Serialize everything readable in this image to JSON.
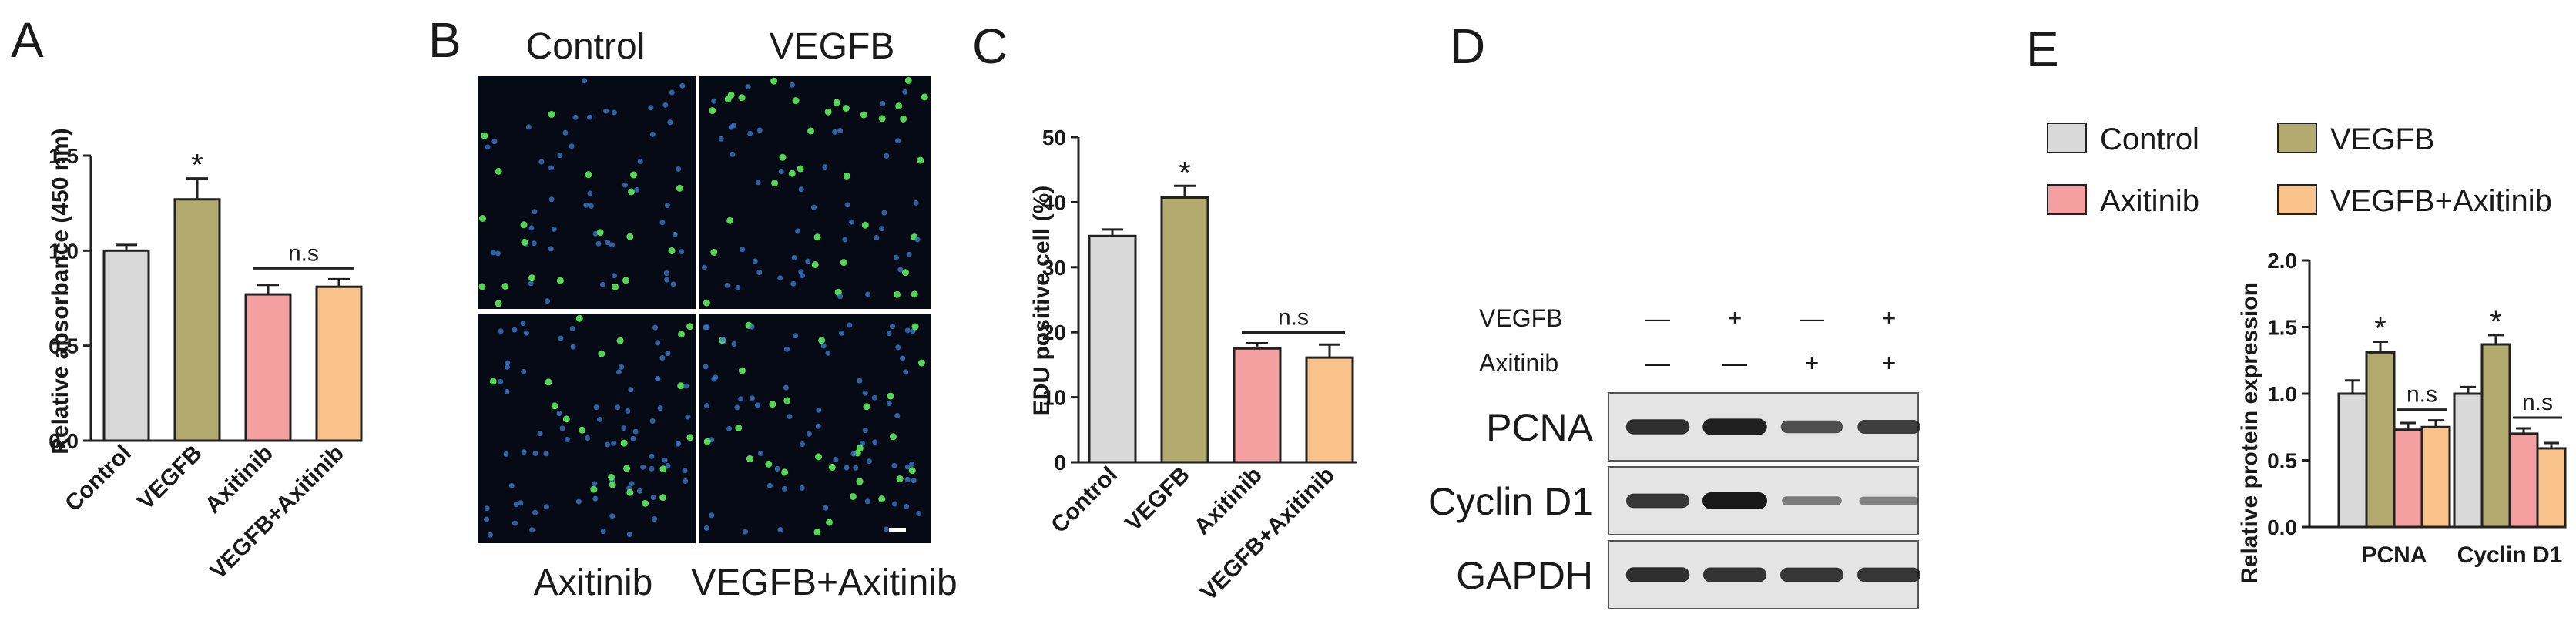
{
  "panel_labels": [
    "A",
    "B",
    "C",
    "D",
    "E"
  ],
  "colors": {
    "control": "#d9d9d9",
    "vegfb": "#b3aa70",
    "axitinib": "#f4a0a0",
    "vegfb_axitinib": "#f8c28a",
    "micro_bg": "#060a14",
    "nucleus_blue": "#3a78c8",
    "nucleus_green": "#5ae05a",
    "blot_bg": "#e4e4e4",
    "band": "#181818"
  },
  "chart_data": [
    {
      "panel": "A",
      "type": "bar",
      "ylabel": "Relative absorbance (450 nm)",
      "ylim": [
        0,
        1.5
      ],
      "yticks": [
        "0.0",
        "0.5",
        "1.0",
        "1.5"
      ],
      "categories": [
        "Control",
        "VEGFB",
        "Axitinib",
        "VEGFB+Axitinib"
      ],
      "values": [
        1.0,
        1.27,
        0.77,
        0.81
      ],
      "errors": [
        0.03,
        0.11,
        0.05,
        0.04
      ],
      "annotations": [
        {
          "text": "*",
          "bar": 1
        },
        {
          "text": "n.s",
          "from_bar": 2,
          "to_bar": 3
        }
      ]
    },
    {
      "panel": "C",
      "type": "bar",
      "ylabel": "EDU positive cell (%)",
      "ylim": [
        0,
        50
      ],
      "yticks": [
        "0",
        "10",
        "20",
        "30",
        "40",
        "50"
      ],
      "categories": [
        "Control",
        "VEGFB",
        "Axitinib",
        "VEGFB+Axitinib"
      ],
      "values": [
        34.8,
        40.7,
        17.5,
        16.1
      ],
      "errors": [
        1.0,
        1.8,
        0.8,
        2.0
      ],
      "annotations": [
        {
          "text": "*",
          "bar": 1
        },
        {
          "text": "n.s",
          "from_bar": 2,
          "to_bar": 3
        }
      ]
    },
    {
      "panel": "E",
      "type": "bar",
      "ylabel": "Relative protein expression",
      "ylim": [
        0,
        2.0
      ],
      "yticks": [
        "0.0",
        "0.5",
        "1.0",
        "1.5",
        "2.0"
      ],
      "categories": [
        "PCNA",
        "Cyclin D1"
      ],
      "series": [
        {
          "name": "Control",
          "values": [
            1.0,
            1.0
          ],
          "errors": [
            0.1,
            0.05
          ]
        },
        {
          "name": "VEGFB",
          "values": [
            1.31,
            1.37
          ],
          "errors": [
            0.08,
            0.07
          ]
        },
        {
          "name": "Axitinib",
          "values": [
            0.73,
            0.7
          ],
          "errors": [
            0.05,
            0.04
          ]
        },
        {
          "name": "VEGFB+Axitinib",
          "values": [
            0.75,
            0.59
          ],
          "errors": [
            0.05,
            0.04
          ]
        }
      ],
      "legend": "top",
      "annotations": [
        {
          "text": "*",
          "category": 0,
          "series": 1
        },
        {
          "text": "*",
          "category": 1,
          "series": 1
        },
        {
          "text": "n.s",
          "category": 0,
          "from_series": 2,
          "to_series": 3
        },
        {
          "text": "n.s",
          "category": 1,
          "from_series": 2,
          "to_series": 3
        }
      ]
    }
  ],
  "micrographs": {
    "titles": [
      "Control",
      "VEGFB",
      "Axitinib",
      "VEGFB+Axitinib"
    ]
  },
  "western_blot": {
    "treatments": [
      {
        "label": "VEGFB",
        "signs": [
          "—",
          "+",
          "—",
          "+"
        ]
      },
      {
        "label": "Axitinib",
        "signs": [
          "—",
          "—",
          "+",
          "+"
        ]
      }
    ],
    "proteins": [
      "PCNA",
      "Cyclin D1",
      "GAPDH"
    ],
    "band_intensity": [
      [
        0.85,
        0.95,
        0.65,
        0.75
      ],
      [
        0.8,
        1.0,
        0.35,
        0.3
      ],
      [
        0.85,
        0.82,
        0.8,
        0.8
      ]
    ]
  }
}
